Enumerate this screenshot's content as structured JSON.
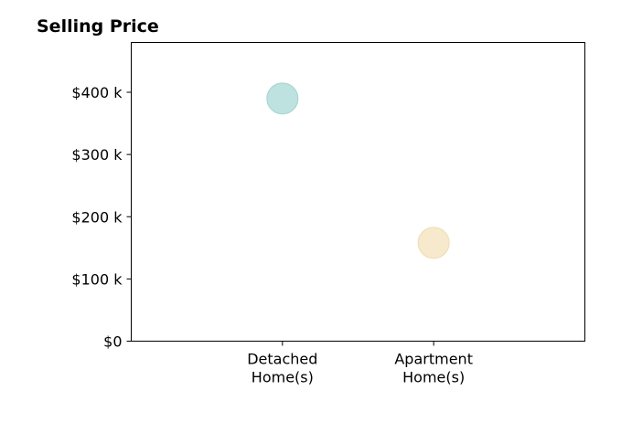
{
  "chart_data": {
    "type": "scatter",
    "title": "Selling Price",
    "xlabel": "",
    "ylabel": "",
    "categories": [
      [
        "Detached",
        "Home(s)"
      ],
      [
        "Apartment",
        "Home(s)"
      ]
    ],
    "values": [
      390,
      158
    ],
    "value_unit": "$ thousands",
    "ylim": [
      0,
      480
    ],
    "yticks": [
      0,
      100,
      200,
      300,
      400
    ],
    "ytick_labels": [
      "$0",
      "$100 k",
      "$200 k",
      "$300 k",
      "$400 k"
    ],
    "xlim": [
      -1,
      2
    ],
    "point_colors": [
      "#bde2df",
      "#f6e9cc"
    ],
    "point_edge_colors": [
      "#9fd4cf",
      "#f0dcb0"
    ],
    "grid": false,
    "legend": "none"
  }
}
